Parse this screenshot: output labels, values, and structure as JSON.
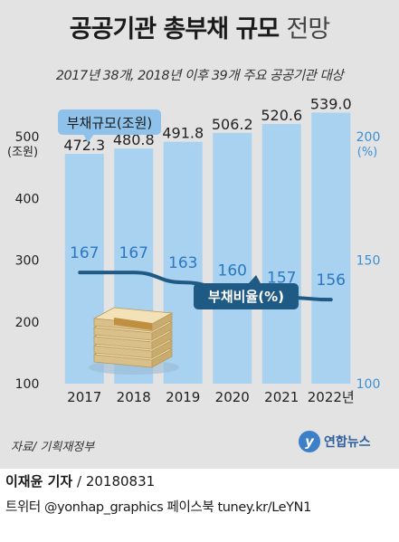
{
  "title_main": "공공기관 총부채 규모",
  "title_light": "전망",
  "subtitle": "2017년 38개, 2018년 이후 39개 주요 공공기관 대상",
  "source": "자료/ 기획재정부",
  "logo": {
    "mark": "y",
    "text": "연합뉴스"
  },
  "credit": {
    "author": "이재윤 기자",
    "date": "/ 20180831",
    "social": "트위터 @yonhap_graphics  페이스북 tuney.kr/LeYN1"
  },
  "colors": {
    "bar": "#a9d1f0",
    "line": "#1f5a84",
    "label_bar": "#222222",
    "label_line": "#2a78c2",
    "right_axis": "#3b8fd8",
    "background": "#e3e3e3"
  },
  "chart_data": {
    "type": "bar",
    "categories": [
      "2017",
      "2018",
      "2019",
      "2020",
      "2021",
      "2022년"
    ],
    "series": [
      {
        "name": "부채규모(조원)",
        "type": "bar",
        "axis": "left",
        "values": [
          472.3,
          480.8,
          491.8,
          506.2,
          520.6,
          539.0
        ],
        "labels": [
          "472.3",
          "480.8",
          "491.8",
          "506.2",
          "520.6",
          "539.0"
        ]
      },
      {
        "name": "부채비율(%)",
        "type": "line",
        "axis": "right",
        "values": [
          167,
          167,
          163,
          160,
          157,
          156
        ]
      }
    ],
    "left_axis": {
      "unit": "(조원)",
      "ticks": [
        100,
        200,
        300,
        400,
        500
      ],
      "range": [
        100,
        550
      ]
    },
    "right_axis": {
      "unit": "(%)",
      "ticks": [
        100,
        150,
        200
      ],
      "range": [
        100,
        212.5
      ]
    },
    "grid": false
  }
}
